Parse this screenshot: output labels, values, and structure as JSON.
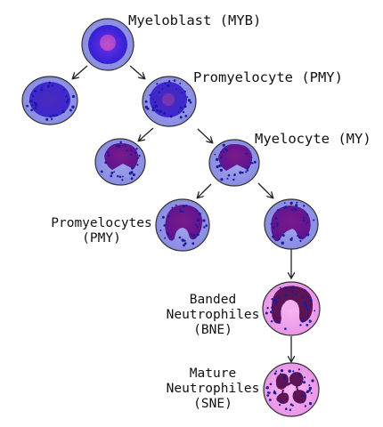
{
  "labels": {
    "myeloblast": "Myeloblast (MYB)",
    "promyelocyte": "Promyelocyte (PMY)",
    "myelocyte": "Myelocyte (MY)",
    "promyelocytes_line1": "Promyelocytes",
    "promyelocytes_line2": "(PMY)",
    "banded_line1": "Banded",
    "banded_line2": "Neutrophiles",
    "banded_line3": "(BNE)",
    "mature_line1": "Mature",
    "mature_line2": "Neutrophiles",
    "mature_line3": "(SNE)"
  },
  "colors": {
    "cytoplasm_blue": "#8f93e6",
    "nucleus_blue": "#3d24c9",
    "nucleus_purple": "#6a1a8c",
    "cytoplasm_pink": "#f0a2ec",
    "nucleus_dark": "#5c1456",
    "granule": "#1c1c9c",
    "outline": "#2a2a2a"
  }
}
